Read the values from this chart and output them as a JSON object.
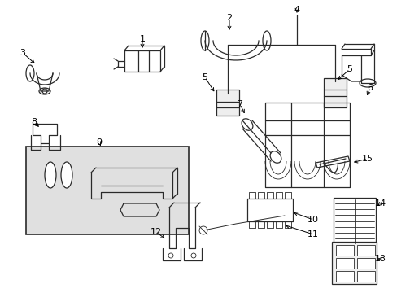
{
  "background_color": "#ffffff",
  "line_color": "#2a2a2a",
  "box9_fill": "#e0e0e0",
  "figsize": [
    4.89,
    3.6
  ],
  "dpi": 100,
  "parts": {
    "callout_fontsize": 8,
    "lw_main": 0.9,
    "lw_thin": 0.6
  }
}
